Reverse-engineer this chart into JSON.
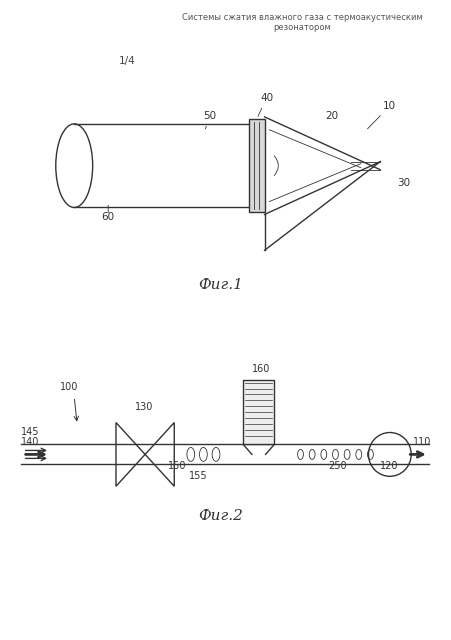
{
  "title_line1": "Системы сжатия влажного газа с термоакустическим",
  "title_line2": "резонатором",
  "page_label": "1/4",
  "fig1_label": "Фиг.1",
  "fig2_label": "Фиг.2",
  "bg_color": "#ffffff",
  "line_color": "#333333",
  "gray_color": "#888888"
}
